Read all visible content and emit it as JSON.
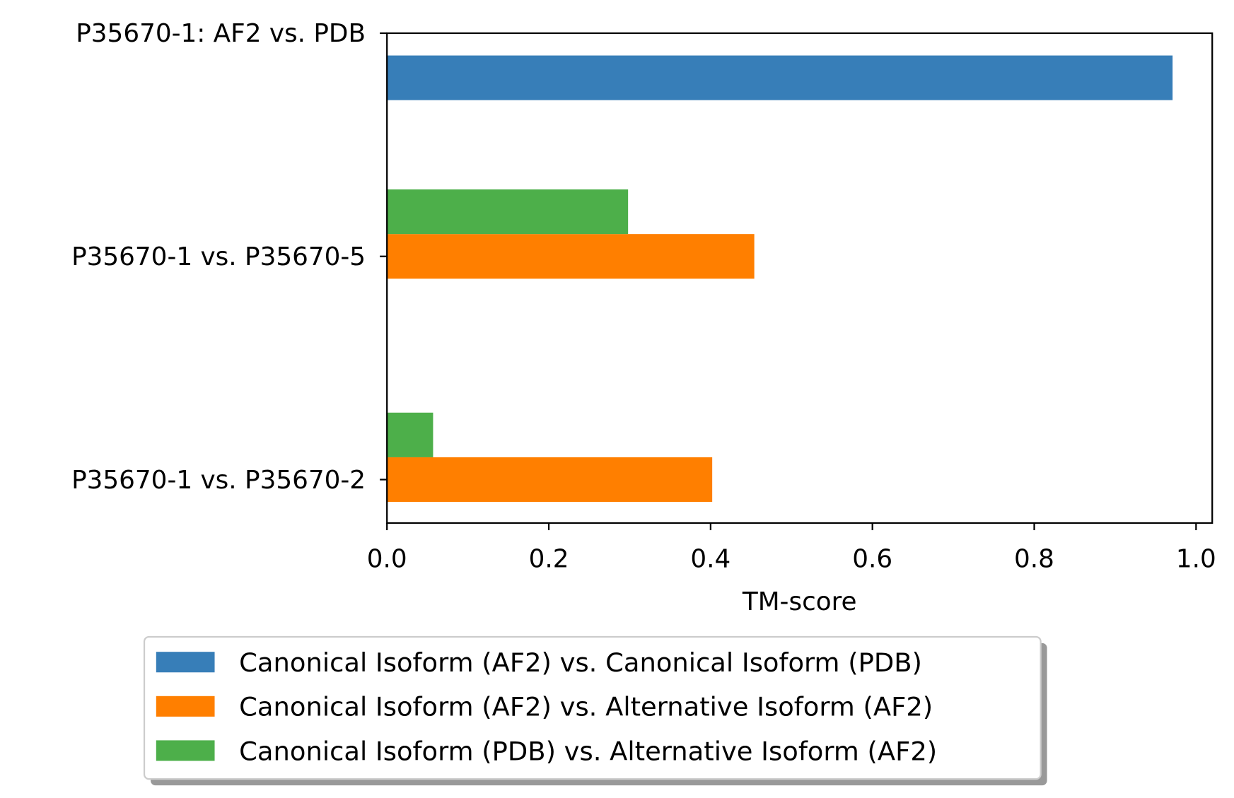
{
  "chart_data": {
    "type": "bar",
    "orientation": "horizontal",
    "title": "",
    "xlabel": "TM-score",
    "ylabel": "",
    "xlim": [
      0,
      1.02
    ],
    "xticks": [
      "0.0",
      "0.2",
      "0.4",
      "0.6",
      "0.8",
      "1.0"
    ],
    "grid": false,
    "legend_position": "below",
    "categories": [
      "P35670-1: AF2 vs. PDB",
      "P35670-1 vs. P35670-5",
      "P35670-1 vs. P35670-2"
    ],
    "series": [
      {
        "name": "Canonical Isoform (AF2) vs. Canonical Isoform (PDB)",
        "color": "#377eb8",
        "values": [
          0.971,
          null,
          null
        ]
      },
      {
        "name": "Canonical Isoform (AF2) vs. Alternative Isoform (AF2)",
        "color": "#ff7f00",
        "values": [
          null,
          0.454,
          0.402
        ]
      },
      {
        "name": "Canonical Isoform (PDB) vs. Alternative Isoform (AF2)",
        "color": "#4daf4a",
        "values": [
          null,
          0.298,
          0.057
        ]
      }
    ]
  }
}
